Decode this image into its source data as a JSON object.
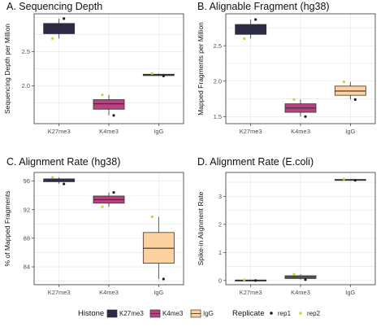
{
  "chart_data": [
    {
      "type": "box",
      "title": "A. Sequencing Depth",
      "ylabel": "Sequencing Depth per Million",
      "categories": [
        "K27me3",
        "K4me3",
        "IgG"
      ],
      "ylim": [
        1.45,
        3.05
      ],
      "yticks": [
        "2.0",
        "2.5"
      ],
      "ytick_values": [
        2.0,
        2.5
      ],
      "boxes": [
        {
          "category": "K27me3",
          "min": 2.69,
          "q1": 2.76,
          "median": 2.84,
          "q3": 2.91,
          "max": 2.98
        },
        {
          "category": "K4me3",
          "min": 1.57,
          "q1": 1.66,
          "median": 1.74,
          "q3": 1.8,
          "max": 1.87
        },
        {
          "category": "IgG",
          "min": 2.145,
          "q1": 2.15,
          "median": 2.16,
          "q3": 2.17,
          "max": 2.18
        }
      ],
      "points": [
        {
          "category": "K27me3",
          "replicate": "rep1",
          "value": 2.98
        },
        {
          "category": "K27me3",
          "replicate": "rep2",
          "value": 2.69
        },
        {
          "category": "K4me3",
          "replicate": "rep1",
          "value": 1.57
        },
        {
          "category": "K4me3",
          "replicate": "rep2",
          "value": 1.87
        },
        {
          "category": "IgG",
          "replicate": "rep1",
          "value": 2.145
        },
        {
          "category": "IgG",
          "replicate": "rep2",
          "value": 2.18
        }
      ]
    },
    {
      "type": "box",
      "title": "B. Alignable Fragment (hg38)",
      "ylabel": "Mapped Fragments per Million",
      "categories": [
        "K27me3",
        "K4me3",
        "IgG"
      ],
      "ylim": [
        1.4,
        2.95
      ],
      "yticks": [
        "1.5",
        "2.0",
        "2.5"
      ],
      "ytick_values": [
        1.5,
        2.0,
        2.5
      ],
      "boxes": [
        {
          "category": "K27me3",
          "min": 2.6,
          "q1": 2.66,
          "median": 2.73,
          "q3": 2.8,
          "max": 2.87
        },
        {
          "category": "K4me3",
          "min": 1.5,
          "q1": 1.56,
          "median": 1.62,
          "q3": 1.68,
          "max": 1.74
        },
        {
          "category": "IgG",
          "min": 1.74,
          "q1": 1.8,
          "median": 1.86,
          "q3": 1.93,
          "max": 1.99
        }
      ],
      "points": [
        {
          "category": "K27me3",
          "replicate": "rep1",
          "value": 2.87
        },
        {
          "category": "K27me3",
          "replicate": "rep2",
          "value": 2.6
        },
        {
          "category": "K4me3",
          "replicate": "rep1",
          "value": 1.5
        },
        {
          "category": "K4me3",
          "replicate": "rep2",
          "value": 1.74
        },
        {
          "category": "IgG",
          "replicate": "rep1",
          "value": 1.74
        },
        {
          "category": "IgG",
          "replicate": "rep2",
          "value": 1.99
        }
      ]
    },
    {
      "type": "box",
      "title": "C. Alignment Rate (hg38)",
      "ylabel": "% of Mapped Fragments",
      "categories": [
        "K27me3",
        "K4me3",
        "IgG"
      ],
      "ylim": [
        81.5,
        97.2
      ],
      "yticks": [
        "84",
        "88",
        "92",
        "96"
      ],
      "ytick_values": [
        84,
        88,
        92,
        96
      ],
      "boxes": [
        {
          "category": "K27me3",
          "min": 95.6,
          "q1": 95.9,
          "median": 96.1,
          "q3": 96.3,
          "max": 96.5
        },
        {
          "category": "K4me3",
          "min": 92.4,
          "q1": 92.9,
          "median": 93.4,
          "q3": 93.9,
          "max": 94.4
        },
        {
          "category": "IgG",
          "min": 82.3,
          "q1": 84.5,
          "median": 86.6,
          "q3": 88.8,
          "max": 91.0
        }
      ],
      "points": [
        {
          "category": "K27me3",
          "replicate": "rep1",
          "value": 95.6
        },
        {
          "category": "K27me3",
          "replicate": "rep2",
          "value": 96.5
        },
        {
          "category": "K4me3",
          "replicate": "rep1",
          "value": 94.4
        },
        {
          "category": "K4me3",
          "replicate": "rep2",
          "value": 92.4
        },
        {
          "category": "IgG",
          "replicate": "rep1",
          "value": 82.3
        },
        {
          "category": "IgG",
          "replicate": "rep2",
          "value": 91.0
        }
      ]
    },
    {
      "type": "box",
      "title": "D. Alignment Rate (E.coli)",
      "ylabel": "Spike-in Alignment Rate",
      "categories": [
        "K27me3",
        "K4me3",
        "IgG"
      ],
      "ylim": [
        -0.15,
        3.85
      ],
      "yticks": [
        "0",
        "1",
        "2",
        "3"
      ],
      "ytick_values": [
        0,
        1,
        2,
        3
      ],
      "boxes": [
        {
          "category": "K27me3",
          "min": 0.0,
          "q1": 0.005,
          "median": 0.01,
          "q3": 0.015,
          "max": 0.02
        },
        {
          "category": "K4me3",
          "min": 0.03,
          "q1": 0.07,
          "median": 0.12,
          "q3": 0.17,
          "max": 0.22
        },
        {
          "category": "IgG",
          "min": 3.57,
          "q1": 3.58,
          "median": 3.59,
          "q3": 3.6,
          "max": 3.61
        }
      ],
      "points": [
        {
          "category": "K27me3",
          "replicate": "rep1",
          "value": 0.0
        },
        {
          "category": "K27me3",
          "replicate": "rep2",
          "value": 0.02
        },
        {
          "category": "K4me3",
          "replicate": "rep1",
          "value": 0.03
        },
        {
          "category": "K4me3",
          "replicate": "rep2",
          "value": 0.22
        },
        {
          "category": "IgG",
          "replicate": "rep1",
          "value": 3.57
        },
        {
          "category": "IgG",
          "replicate": "rep2",
          "value": 3.61
        }
      ]
    }
  ],
  "legend": {
    "histone_title": "Histone",
    "histone_items": [
      {
        "label": "K27me3",
        "color": "#2b2a48"
      },
      {
        "label": "K4me3",
        "color": "#b7437f"
      },
      {
        "label": "IgG",
        "color": "#fdd1a0"
      }
    ],
    "replicate_title": "Replicate",
    "replicate_items": [
      {
        "label": "rep1",
        "color": "#1a1a3a"
      },
      {
        "label": "rep2",
        "color": "#c3d92a"
      }
    ]
  },
  "colors": {
    "panel_bg": "#ffffff",
    "grid": "#e5e5e5",
    "axis": "#333333",
    "box_stroke": "#333333"
  }
}
